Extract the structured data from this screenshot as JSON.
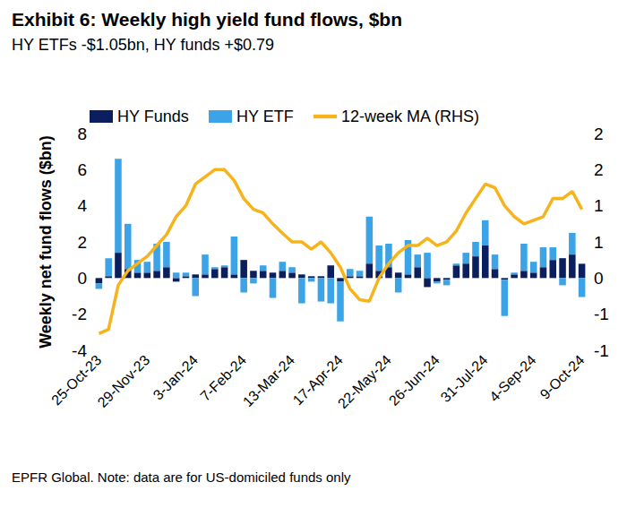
{
  "chart_data": {
    "type": "bar",
    "title": "Exhibit 6: Weekly high yield fund flows, $bn",
    "subtitle": "HY ETFs -$1.05bn, HY funds +$0.79",
    "source": "EPFR Global. Note: data are for US-domiciled funds only",
    "ylabel": "Weekly net fund flows ($bn)",
    "categories": [
      "25-Oct-23",
      null,
      null,
      null,
      null,
      "29-Nov-23",
      null,
      null,
      null,
      null,
      "3-Jan-24",
      null,
      null,
      null,
      null,
      "7-Feb-24",
      null,
      null,
      null,
      null,
      "13-Mar-24",
      null,
      null,
      null,
      null,
      "17-Apr-24",
      null,
      null,
      null,
      null,
      "22-May-24",
      null,
      null,
      null,
      null,
      "26-Jun-24",
      null,
      null,
      null,
      null,
      "31-Jul-24",
      null,
      null,
      null,
      null,
      "4-Sep-24",
      null,
      null,
      null,
      null,
      "9-Oct-24"
    ],
    "series": [
      {
        "name": "HY Funds",
        "type": "bar",
        "color": "#0b1f5e",
        "values": [
          -0.3,
          0.1,
          1.4,
          0.5,
          0.3,
          0.3,
          0.4,
          0.6,
          -0.2,
          0.1,
          0.2,
          0.2,
          0.5,
          0.6,
          0.2,
          1.0,
          0.4,
          0.4,
          0.3,
          0.4,
          0.3,
          0.2,
          0.1,
          0.1,
          0.7,
          -0.2,
          0.1,
          0.1,
          0.8,
          0.4,
          0.6,
          0.3,
          0.2,
          0.6,
          -0.5,
          -0.2,
          -0.1,
          0.7,
          0.8,
          1.2,
          1.8,
          0.5,
          -0.1,
          0.2,
          0.4,
          0.3,
          0.6,
          1.0,
          1.1,
          1.3,
          0.79
        ]
      },
      {
        "name": "HY ETF",
        "type": "bar",
        "color": "#3ba3e6",
        "values": [
          -0.3,
          1.0,
          5.2,
          2.5,
          0.7,
          0.6,
          1.5,
          1.4,
          0.3,
          0.2,
          -1.0,
          1.1,
          0.1,
          0.1,
          2.1,
          -0.8,
          -0.3,
          0.3,
          -1.1,
          0.5,
          0.3,
          -1.4,
          -0.2,
          -1.3,
          -1.4,
          -2.2,
          0.4,
          0.3,
          2.6,
          1.4,
          1.3,
          -0.8,
          1.9,
          0.7,
          1.4,
          -0.1,
          -0.3,
          0.1,
          0.6,
          0.8,
          1.4,
          0.8,
          -2.0,
          0.1,
          1.5,
          0.6,
          1.1,
          0.7,
          -0.4,
          1.2,
          -1.05
        ]
      },
      {
        "name": "12-week MA (RHS)",
        "type": "line",
        "color": "#f7b31b",
        "axis": "y2",
        "values": [
          -0.77,
          -0.71,
          -0.1,
          0.1,
          0.2,
          0.3,
          0.45,
          0.6,
          0.85,
          1.0,
          1.3,
          1.4,
          1.5,
          1.5,
          1.35,
          1.1,
          0.95,
          0.9,
          0.75,
          0.62,
          0.5,
          0.5,
          0.4,
          0.5,
          0.35,
          0.15,
          -0.15,
          -0.3,
          -0.32,
          0.0,
          0.2,
          0.35,
          0.45,
          0.45,
          0.55,
          0.45,
          0.5,
          0.65,
          0.9,
          1.1,
          1.3,
          1.25,
          1.0,
          0.85,
          0.75,
          0.8,
          0.85,
          1.1,
          1.1,
          1.2,
          0.95
        ]
      }
    ],
    "stacked": true,
    "ylim": [
      -4,
      8
    ],
    "yticks": [
      -4,
      -2,
      0,
      2,
      4,
      6,
      8
    ],
    "y2lim": [
      -1,
      2
    ],
    "y2ticks": [
      -1,
      {
        "value": -0.5,
        "label": "-1"
      },
      0,
      {
        "value": 0.5,
        "label": "1"
      },
      1,
      {
        "value": 1.5,
        "label": "2"
      },
      2
    ],
    "grid": false,
    "legend": "top-left"
  }
}
